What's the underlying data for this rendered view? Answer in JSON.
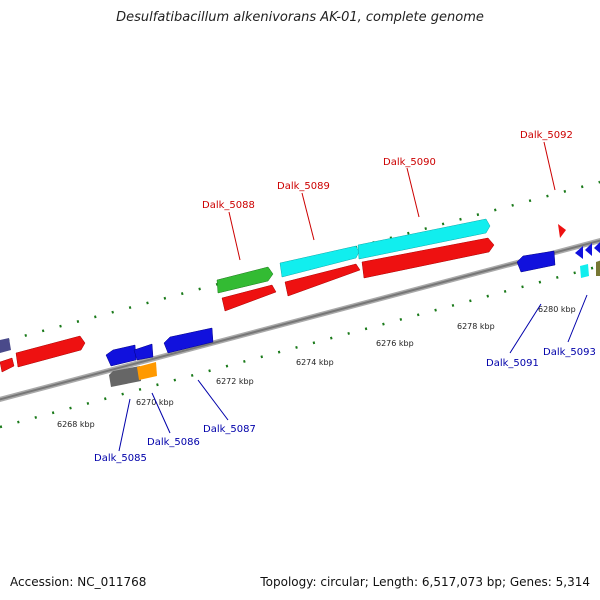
{
  "title": "Desulfatibacillum alkenivorans AK-01, complete genome",
  "accession": "Accession: NC_011768",
  "summary": "Topology: circular; Length: 6,517,073 bp; Genes: 5,314",
  "colors": {
    "forward_label": "#cc0000",
    "reverse_label": "#0000aa",
    "backbone": "#888888",
    "tick": "#1a7a1a",
    "red": "#ee1111",
    "blue": "#1111dd",
    "cyan": "#11eeee",
    "green": "#33bb33",
    "grey": "#666666",
    "orange": "#ff9900",
    "slate": "#4a4a8a",
    "olive": "#777733"
  },
  "tick_labels": [
    "6268 kbp",
    "6270 kbp",
    "6272 kbp",
    "6274 kbp",
    "6276 kbp",
    "6278 kbp",
    "6280 kbp"
  ],
  "gene_labels": {
    "forward": [
      "Dalk_5088",
      "Dalk_5089",
      "Dalk_5090",
      "Dalk_5092"
    ],
    "reverse": [
      "Dalk_5085",
      "Dalk_5086",
      "Dalk_5087",
      "Dalk_5091",
      "Dalk_5093"
    ]
  }
}
